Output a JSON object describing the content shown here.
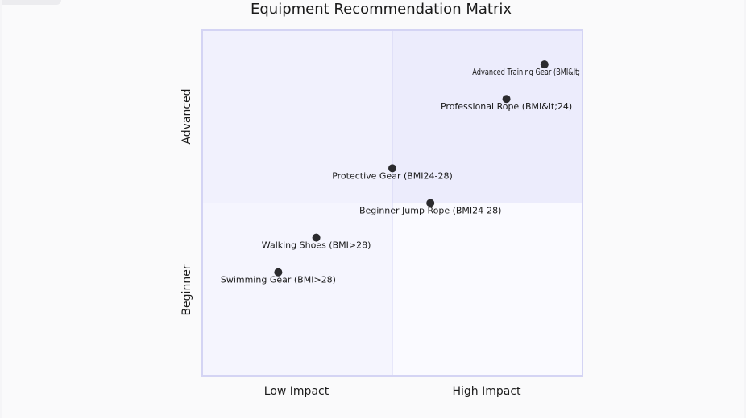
{
  "chart_data": {
    "type": "quadrant",
    "title": "Equipment Recommendation Matrix",
    "x_axis": {
      "low_label": "Low Impact",
      "high_label": "High Impact"
    },
    "y_axis": {
      "low_label": "Beginner",
      "high_label": "Advanced"
    },
    "xlim": [
      0,
      1
    ],
    "ylim": [
      0,
      1
    ],
    "quadrant_colors": {
      "top_right": "#ececfc",
      "top_left": "#f1f1fd",
      "bottom_left": "#f5f5fe",
      "bottom_right": "#fafaff"
    },
    "border_color": "#d4d4f4",
    "point_color": "#2b2b2e",
    "points": [
      {
        "label": "Advanced Training Gear (BMI&lt;",
        "x": 0.9,
        "y": 0.9
      },
      {
        "label": "Professional Rope (BMI&lt;24)",
        "x": 0.8,
        "y": 0.8
      },
      {
        "label": "Protective Gear (BMI24-28)",
        "x": 0.5,
        "y": 0.6
      },
      {
        "label": "Beginner Jump Rope (BMI24-28)",
        "x": 0.6,
        "y": 0.5
      },
      {
        "label": "Walking Shoes (BMI>28)",
        "x": 0.3,
        "y": 0.4
      },
      {
        "label": "Swimming Gear (BMI>28)",
        "x": 0.2,
        "y": 0.3
      }
    ]
  }
}
